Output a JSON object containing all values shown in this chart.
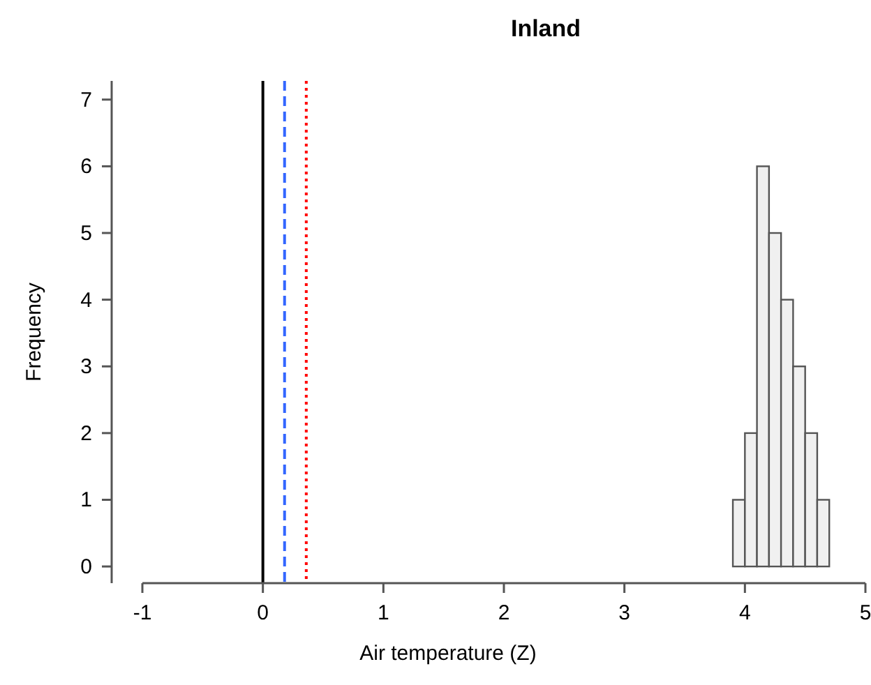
{
  "chart_data": {
    "type": "histogram",
    "title": "Inland",
    "xlabel": "Air temperature (Z)",
    "ylabel": "Frequency",
    "bins": [
      3.9,
      4.0,
      4.1,
      4.2,
      4.3,
      4.4,
      4.5,
      4.6,
      4.7
    ],
    "values": [
      1,
      2,
      6,
      5,
      4,
      3,
      2,
      1
    ],
    "color": "#f0f0f0",
    "xlim": [
      -1,
      5
    ],
    "xticks": [
      -1,
      0,
      1,
      2,
      3,
      4,
      5
    ],
    "ylim": [
      -0.25,
      7.28
    ],
    "yticks": [
      0,
      1,
      2,
      3,
      4,
      5,
      6,
      7
    ],
    "grid": false,
    "ref_lines": [
      {
        "axis": "x",
        "value": 0,
        "color": "#000000",
        "line_style": "solid"
      },
      {
        "axis": "x",
        "value": 0.18,
        "color": "#3366ff",
        "line_style": "dashed"
      },
      {
        "axis": "x",
        "value": 0.36,
        "color": "#ff0000",
        "line_style": "dotted"
      }
    ]
  }
}
